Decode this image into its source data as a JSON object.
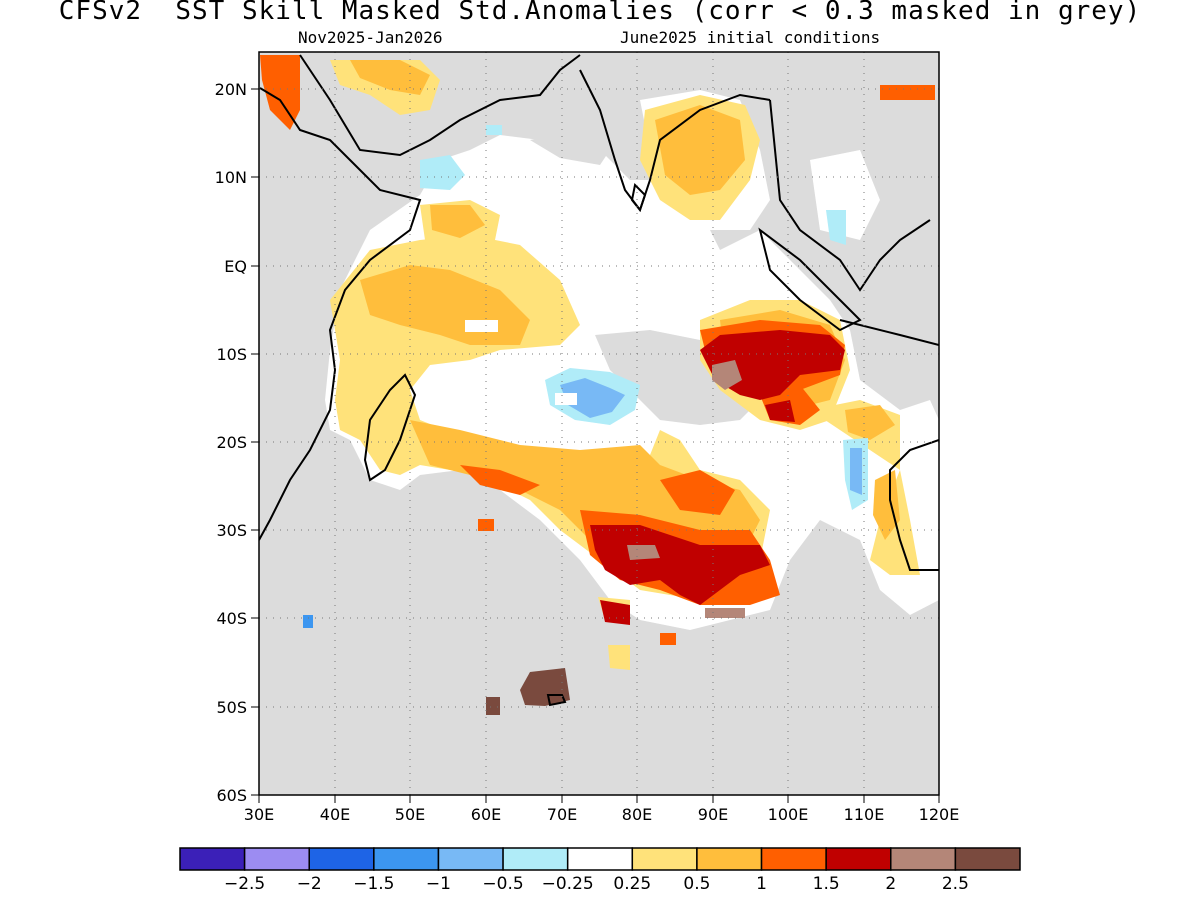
{
  "title": "CFSv2  SST Skill Masked Std.Anomalies (corr < 0.3 masked in grey)",
  "subtitle_left": "Nov2025-Jan2026",
  "subtitle_right": "June2025 initial conditions",
  "map": {
    "lon_range": [
      30,
      120
    ],
    "lat_range": [
      -60,
      24
    ],
    "x_ticks": [
      "30E",
      "40E",
      "50E",
      "60E",
      "70E",
      "80E",
      "90E",
      "100E",
      "110E",
      "120E"
    ],
    "y_ticks": [
      "20N",
      "10N",
      "EQ",
      "10S",
      "20S",
      "30S",
      "40S",
      "50S",
      "60S"
    ],
    "mask_color": "#dcdcdc",
    "land_color": "#dcdcdc",
    "grid": "dotted"
  },
  "colorbar": {
    "colors": [
      "#3b20b8",
      "#9c8cf2",
      "#1e64e6",
      "#3c96f0",
      "#78b9f5",
      "#b0ecf8",
      "#ffffff",
      "#ffe27a",
      "#ffbe3c",
      "#ff5f00",
      "#c00000",
      "#b48678",
      "#7a4a3e"
    ],
    "labels": [
      "-2.5",
      "-2",
      "-1.5",
      "-1",
      "-0.5",
      "-0.25",
      "0.25",
      "0.5",
      "1",
      "1.5",
      "2",
      "2.5"
    ]
  },
  "chart_data": {
    "type": "heatmap",
    "title": "CFSv2  SST Skill Masked Std.Anomalies (corr < 0.3 masked in grey)",
    "region": "Indian Ocean",
    "x": "longitude (30E-120E)",
    "y": "latitude (60S-24N)",
    "value_levels": [
      -2.5,
      -2,
      -1.5,
      -1,
      -0.5,
      -0.25,
      0.25,
      0.5,
      1,
      1.5,
      2,
      2.5
    ],
    "features": [
      {
        "name": "Arabian Sea / north Indian Ocean",
        "anomaly_range": [
          -0.25,
          0.5
        ]
      },
      {
        "name": "Bay of Bengal",
        "anomaly_range": [
          0.5,
          1.5
        ]
      },
      {
        "name": "Equatorial western Indian Ocean",
        "anomaly_range": [
          0.5,
          1
        ]
      },
      {
        "name": "Central Indian Ocean near 15S 70E",
        "anomaly_range": [
          -1,
          -0.5
        ]
      },
      {
        "name": "South of Java near 10S 95E",
        "anomaly_range": [
          1.5,
          2.5
        ]
      },
      {
        "name": "Subtropical south Indian Ocean near 32S 85E",
        "anomaly_range": [
          1,
          2.5
        ]
      },
      {
        "name": "Near Kerguelen 48S 68E",
        "anomaly_range": [
          2.5,
          3
        ]
      }
    ]
  }
}
